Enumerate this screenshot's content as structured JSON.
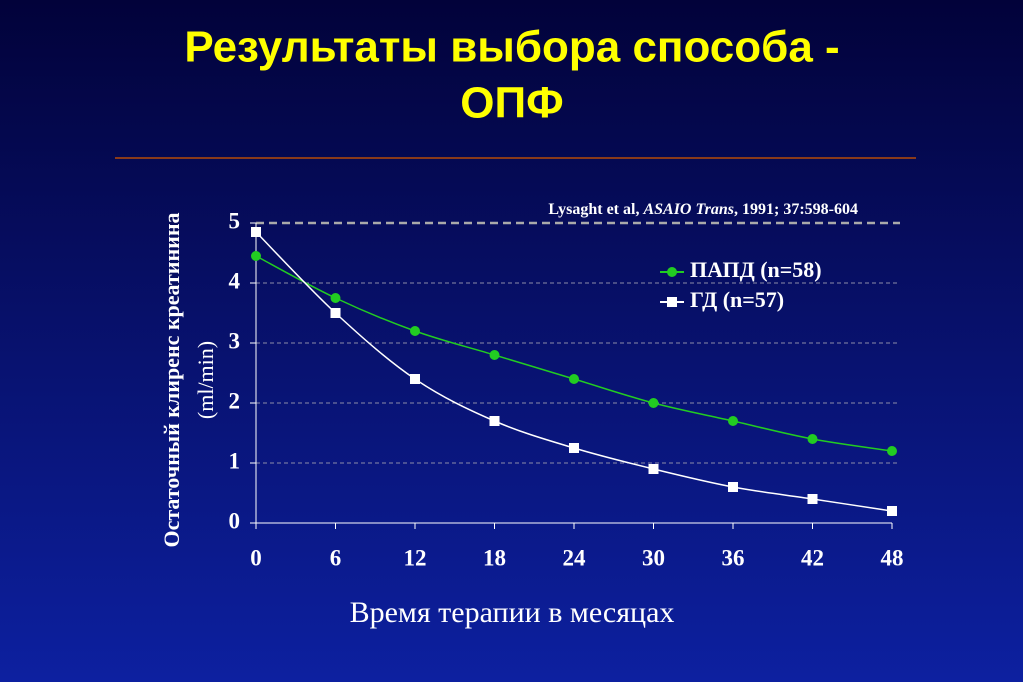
{
  "chart_data": {
    "type": "line",
    "title": [
      "Результаты выбора способа -",
      "ОПФ"
    ],
    "citation": [
      "Lysaght et al, ",
      "ASAIO Trans",
      ", 1991; 37:598-604"
    ],
    "x_label": "Время терапии в месяцах",
    "y_label": [
      "Остаточный клиренс креатинина",
      "(ml/min)"
    ],
    "x": [
      0,
      6,
      12,
      18,
      24,
      30,
      36,
      42,
      48
    ],
    "series": [
      {
        "name": "ПАПД (n=58)",
        "color": "#22cc22",
        "marker": "circle",
        "values": [
          4.45,
          3.75,
          3.2,
          2.8,
          2.4,
          2.0,
          1.7,
          1.4,
          1.2
        ]
      },
      {
        "name": "ГД (n=57)",
        "color": "#ffffff",
        "marker": "square",
        "values": [
          4.85,
          3.5,
          2.4,
          1.7,
          1.25,
          0.9,
          0.6,
          0.4,
          0.2
        ]
      }
    ],
    "xlim": [
      0,
      48
    ],
    "xticks": [
      0,
      6,
      12,
      18,
      24,
      30,
      36,
      42,
      48
    ],
    "ylim": [
      0,
      5
    ],
    "yticks": [
      0,
      1,
      2,
      3,
      4,
      5
    ],
    "grid": true
  }
}
